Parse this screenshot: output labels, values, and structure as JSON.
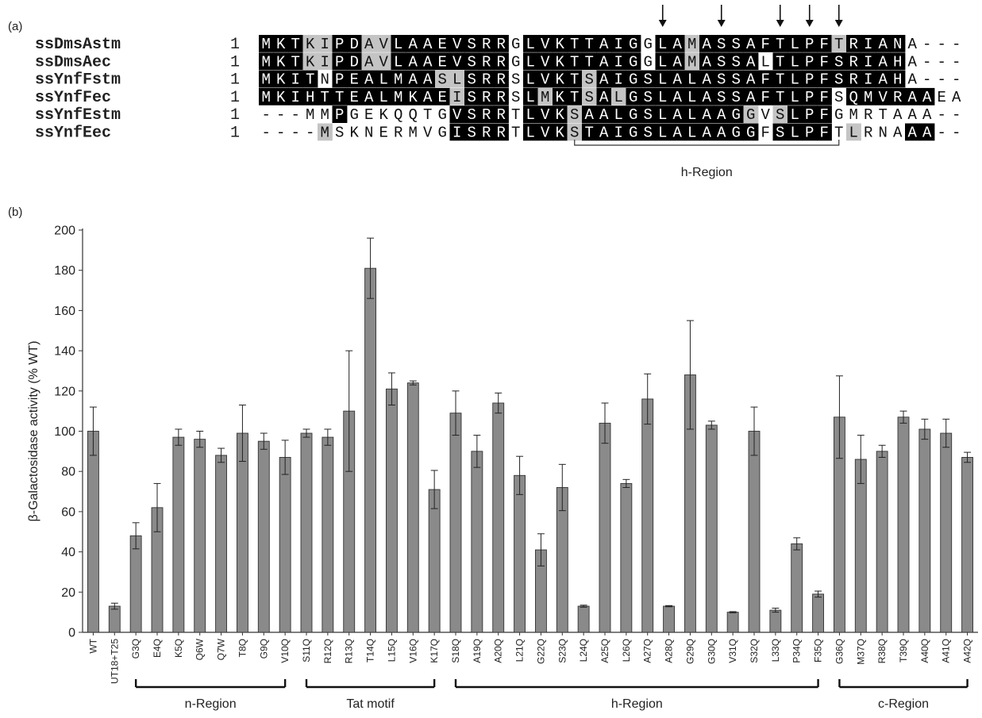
{
  "panel_a": {
    "label": "(a)",
    "sequences": [
      {
        "name": "ssDmsAstm",
        "start": "1",
        "seq": "MKTKIPDAVLAAEVSRRGLVKTTAIGGLAMASSAFTLPFTRIANA---",
        "shade": "BBBGGBBGGBBBBBBBBWBBBBBBBBWBBGBBBBBBBBBGBBBBWWW"
      },
      {
        "name": "ssDmsAec",
        "start": "1",
        "seq": "MKTKIPDAVLAAEVSRRGLVKTTAIGGLAMASSALTLPFSRIAHA---",
        "shade": "BBBGGBBGGBBBBBBBBWBBBBBBBBWBBGBBBBWBBBBBBBBBWWW"
      },
      {
        "name": "ssYnfFstm",
        "start": "1",
        "seq": "MKITNPEALMAASLSRRSLVKTSAIGSLALASSAFTLPFSRIAHA---",
        "shade": "BBBBWBBBBBBBGGBBBWBBBBGBBBBBBBBBBBBBBBBBBBBBWWW"
      },
      {
        "name": "ssYnfFec",
        "start": "1",
        "seq": "MKIHTTEALMKAEISRRSLMKTSALGSLALASSAFTLPFSQMVRAAEA",
        "shade": "BBBBBBBBBBBBBGBBBWBGBBGBGBBBBBBBBBBBBBBWBBBBBBWW"
      },
      {
        "name": "ssYnfEstm",
        "start": "1",
        "seq": "---MMPGEKQQTGVSRRTLVKSAALGSLALAAGGVSLPFGMRTAAA--",
        "shade": "WWWWWBWWWWWWWBBBBWBBBGBBBBBBBBBBBGWGBBBWWWWWWWWW"
      },
      {
        "name": "ssYnfEec",
        "start": "1",
        "seq": "----MSKNERMVGISRRTLVKSTAIGSLALAAGGFSLPFTLRNAAA--",
        "shade": "WWWWGWWWWWWWWBBBBWBBBGBBBBBBBBBBBBWBBBBWGWWWBBWW"
      }
    ],
    "arrow_positions": [
      27,
      31,
      35,
      37,
      39
    ],
    "bracket_label": "h-Region"
  },
  "panel_b_label": "(b)",
  "chart_data": {
    "type": "bar",
    "title": "",
    "ylabel": "β-Galactosidase activity (% WT)",
    "ylim": [
      0,
      200
    ],
    "yticks": [
      "0",
      "20",
      "40",
      "60",
      "80",
      "100",
      "120",
      "140",
      "160",
      "180",
      "200"
    ],
    "categories": [
      "WT",
      "UT18+T25",
      "G3Q",
      "E4Q",
      "K5Q",
      "Q6W",
      "Q7W",
      "T8Q",
      "G9Q",
      "V10Q",
      "S11Q",
      "R12Q",
      "R13Q",
      "T14Q",
      "L15Q",
      "V16Q",
      "K17Q",
      "S18Q",
      "A19Q",
      "A20Q",
      "L21Q",
      "G22Q",
      "S23Q",
      "L24Q",
      "A25Q",
      "L26Q",
      "A27Q",
      "A28Q",
      "G29Q",
      "G30Q",
      "V31Q",
      "S32Q",
      "L33Q",
      "P34Q",
      "F35Q",
      "G36Q",
      "M37Q",
      "R38Q",
      "T39Q",
      "A40Q",
      "A41Q",
      "A42Q"
    ],
    "values": [
      100,
      13,
      48,
      62,
      97,
      96,
      88,
      99,
      95,
      87,
      99,
      97,
      110,
      181,
      121,
      124,
      71,
      109,
      90,
      114,
      78,
      41,
      72,
      13,
      104,
      74,
      116,
      13,
      128,
      103,
      10,
      100,
      11,
      44,
      19,
      107,
      86,
      90,
      107,
      101,
      99,
      87
    ],
    "errors": [
      12,
      1.5,
      6.5,
      12,
      4,
      4,
      3.5,
      14,
      4,
      8.5,
      2,
      4,
      30,
      15,
      8,
      1,
      9.5,
      11,
      8,
      5,
      9.5,
      8,
      11.5,
      0.5,
      10,
      2,
      12.5,
      0.3,
      27,
      2,
      0.3,
      12,
      1,
      3,
      1.5,
      20.5,
      12,
      3,
      3,
      5,
      7,
      2.5
    ],
    "bar_color": "#8a8a8a",
    "regions": [
      {
        "label": "n-Region",
        "from": 2,
        "to": 9
      },
      {
        "label": "Tat motif",
        "from": 10,
        "to": 16
      },
      {
        "label": "h-Region",
        "from": 17,
        "to": 34
      },
      {
        "label": "c-Region",
        "from": 35,
        "to": 41
      }
    ]
  }
}
